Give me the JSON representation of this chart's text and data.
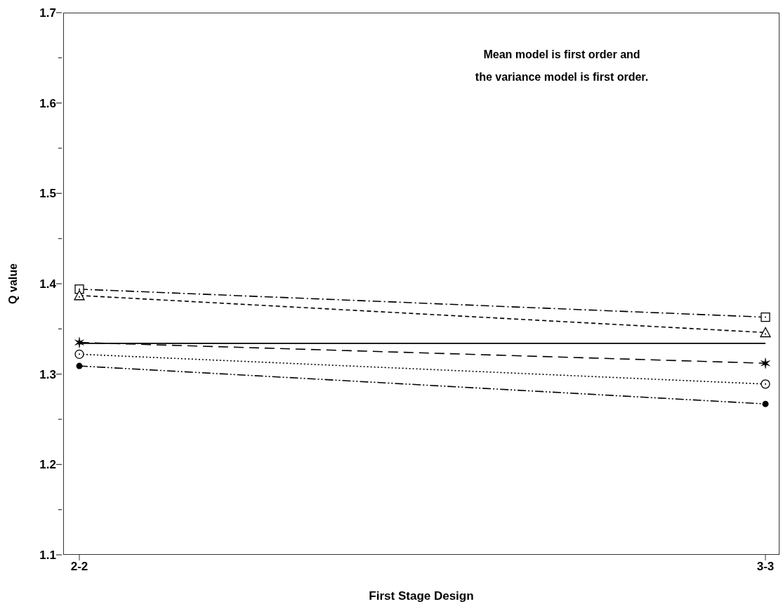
{
  "chart_data": {
    "type": "line",
    "xlabel": "First Stage Design",
    "ylabel": "Q value",
    "annotations": [
      "Mean model is first order and\nthe variance model is first order."
    ],
    "categories": [
      "2-2",
      "3-3"
    ],
    "ylim": [
      1.1,
      1.7
    ],
    "yticks": [
      1.1,
      1.2,
      1.3,
      1.4,
      1.5,
      1.6,
      1.7
    ],
    "grid": false,
    "legend": false,
    "series": [
      {
        "color": "#000000",
        "values": [
          1.394,
          1.363
        ],
        "marker": "square",
        "line_style": "dashdot"
      },
      {
        "color": "#000000",
        "values": [
          1.387,
          1.346
        ],
        "marker": "triangle",
        "line_style": "dashed"
      },
      {
        "color": "#000000",
        "values": [
          1.334,
          1.334
        ],
        "marker": "none",
        "line_style": "solid"
      },
      {
        "color": "#000000",
        "values": [
          1.335,
          1.312
        ],
        "marker": "cross",
        "line_style": "longdash"
      },
      {
        "color": "#000000",
        "values": [
          1.322,
          1.289
        ],
        "marker": "circle",
        "line_style": "dotted"
      },
      {
        "color": "#000000",
        "values": [
          1.309,
          1.267
        ],
        "marker": "dot",
        "line_style": "dashdotdot"
      }
    ]
  }
}
